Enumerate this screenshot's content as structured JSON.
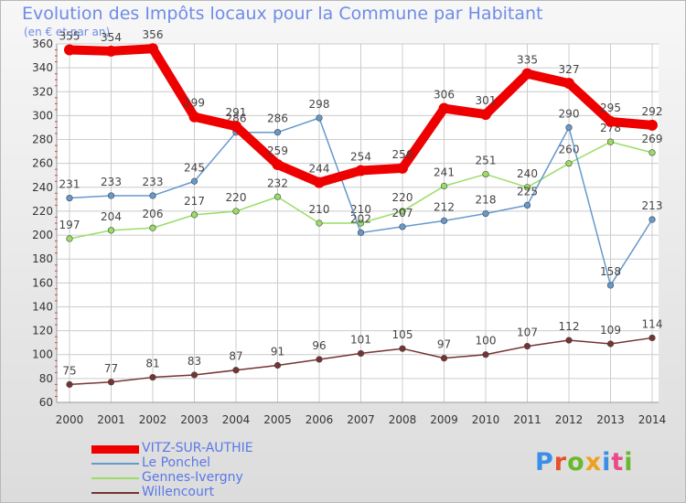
{
  "title": "Evolution des Impôts locaux pour la Commune par Habitant",
  "subtitle": "(en € et par an)",
  "logo": {
    "text": "Proxiti",
    "colors": [
      "#3a8ee8",
      "#e8502a",
      "#6ab82e",
      "#f0a020",
      "#3a8ee8",
      "#e84a8a",
      "#6ab82e"
    ]
  },
  "chart_data": {
    "type": "line",
    "x": [
      "2000",
      "2001",
      "2002",
      "2003",
      "2004",
      "2005",
      "2006",
      "2007",
      "2008",
      "2009",
      "2010",
      "2011",
      "2012",
      "2013",
      "2014"
    ],
    "yticks": [
      60,
      80,
      100,
      120,
      140,
      160,
      180,
      200,
      220,
      240,
      260,
      280,
      300,
      320,
      340,
      360
    ],
    "ylim": [
      60,
      360
    ],
    "grid": true,
    "legend_position": "bottom-left",
    "series": [
      {
        "name": "VITZ-SUR-AUTHIE",
        "color": "#ee0000",
        "values": [
          355,
          354,
          356,
          299,
          291,
          259,
          244,
          254,
          256,
          306,
          301,
          335,
          327,
          295,
          292
        ]
      },
      {
        "name": "Le Ponchel",
        "color": "#6699cc",
        "values": [
          231,
          233,
          233,
          245,
          286,
          286,
          298,
          202,
          207,
          212,
          218,
          225,
          290,
          158,
          213
        ]
      },
      {
        "name": "Gennes-Ivergny",
        "color": "#99dd66",
        "values": [
          197,
          204,
          206,
          217,
          220,
          232,
          210,
          210,
          220,
          241,
          251,
          240,
          260,
          278,
          269
        ]
      },
      {
        "name": "Willencourt",
        "color": "#773333",
        "values": [
          75,
          77,
          81,
          83,
          87,
          91,
          96,
          101,
          105,
          97,
          100,
          107,
          112,
          109,
          114
        ]
      }
    ]
  }
}
